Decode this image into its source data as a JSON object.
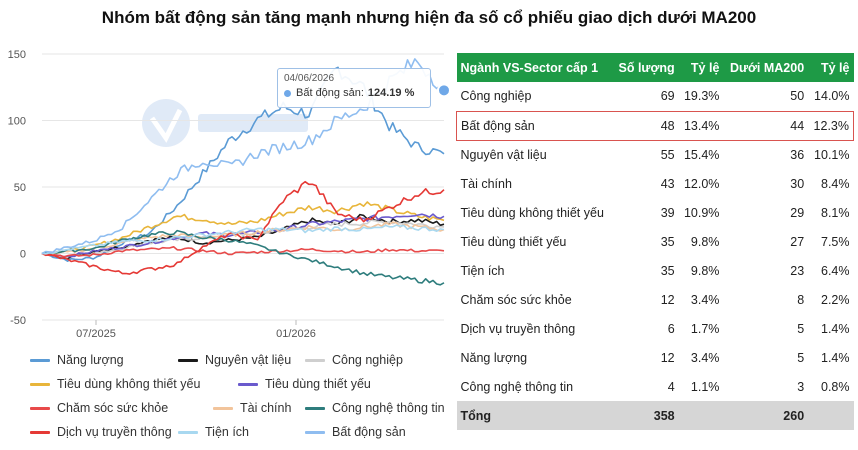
{
  "title": "Nhóm bất động sản tăng mạnh nhưng hiện đa số cổ phiếu giao dịch dưới MA200",
  "tooltip": {
    "date": "04/06/2026",
    "series": "Bất động sản:",
    "value": "124.19 %"
  },
  "chart_data": [
    {
      "type": "line",
      "title": "",
      "xlabel": "",
      "ylabel": "",
      "ylim": [
        -50,
        150
      ],
      "yticks": [
        "150",
        "100",
        "50",
        "0",
        "-50"
      ],
      "xticks": [
        "07/2025",
        "01/2026"
      ],
      "x_range": [
        "2025-05",
        "2026-06"
      ],
      "grid": "horizontal",
      "legend": "bottom",
      "series": [
        {
          "name": "Năng lượng",
          "color": "#5b9bd5",
          "values": [
            0,
            -5,
            -3,
            8,
            15,
            35,
            60,
            85,
            100,
            110,
            105,
            140,
            125,
            95,
            80,
            75
          ]
        },
        {
          "name": "Nguyên vật liệu",
          "color": "#1a1a1a",
          "values": [
            0,
            -3,
            2,
            5,
            10,
            12,
            8,
            10,
            12,
            18,
            25,
            22,
            28,
            24,
            25,
            22
          ]
        },
        {
          "name": "Công nghiệp",
          "color": "#cfcfcf",
          "values": [
            0,
            -2,
            0,
            4,
            8,
            10,
            12,
            14,
            15,
            18,
            20,
            22,
            23,
            24,
            22,
            20
          ]
        },
        {
          "name": "Tiêu dùng không thiết yếu",
          "color": "#e8b53a",
          "values": [
            0,
            2,
            6,
            12,
            20,
            28,
            26,
            22,
            24,
            30,
            35,
            32,
            38,
            33,
            28,
            25
          ]
        },
        {
          "name": "Tiêu dùng thiết yếu",
          "color": "#6a5acd",
          "values": [
            0,
            -2,
            2,
            5,
            8,
            12,
            15,
            14,
            16,
            18,
            22,
            24,
            26,
            28,
            30,
            28
          ]
        },
        {
          "name": "Chăm sóc sức khỏe",
          "color": "#e84a4a",
          "values": [
            0,
            -2,
            -1,
            2,
            3,
            4,
            2,
            0,
            1,
            2,
            3,
            2,
            1,
            3,
            2,
            2
          ]
        },
        {
          "name": "Tài chính",
          "color": "#f2c49b",
          "values": [
            0,
            1,
            4,
            8,
            12,
            14,
            12,
            14,
            16,
            18,
            20,
            18,
            20,
            22,
            20,
            18
          ]
        },
        {
          "name": "Công nghệ thông tin",
          "color": "#2e7d7d",
          "values": [
            0,
            2,
            4,
            10,
            14,
            16,
            12,
            10,
            6,
            0,
            -5,
            -10,
            -15,
            -18,
            -20,
            -22
          ]
        },
        {
          "name": "Dịch vụ truyền thông",
          "color": "#e53935",
          "values": [
            0,
            -5,
            -10,
            -15,
            -12,
            -8,
            5,
            15,
            10,
            40,
            55,
            30,
            25,
            35,
            45,
            48
          ]
        },
        {
          "name": "Tiện ích",
          "color": "#a8d8f0",
          "values": [
            0,
            3,
            6,
            9,
            10,
            12,
            14,
            16,
            18,
            18,
            17,
            19,
            18,
            20,
            19,
            18
          ]
        },
        {
          "name": "Bất động sản",
          "color": "#8fbdf0",
          "values": [
            0,
            5,
            10,
            20,
            40,
            60,
            70,
            65,
            75,
            80,
            85,
            100,
            110,
            130,
            145,
            124.19
          ]
        }
      ]
    },
    {
      "type": "table",
      "columns": [
        "Ngành VS-Sector cấp 1",
        "Số lượng",
        "Tỷ lệ",
        "Dưới MA200",
        "Tỷ lệ"
      ],
      "rows": [
        [
          "Công nghiệp",
          "69",
          "19.3%",
          "50",
          "14.0%"
        ],
        [
          "Bất động sản",
          "48",
          "13.4%",
          "44",
          "12.3%"
        ],
        [
          "Nguyên vật liệu",
          "55",
          "15.4%",
          "36",
          "10.1%"
        ],
        [
          "Tài chính",
          "43",
          "12.0%",
          "30",
          "8.4%"
        ],
        [
          "Tiêu dùng không thiết yếu",
          "39",
          "10.9%",
          "29",
          "8.1%"
        ],
        [
          "Tiêu dùng thiết yếu",
          "35",
          "9.8%",
          "27",
          "7.5%"
        ],
        [
          "Tiện ích",
          "35",
          "9.8%",
          "23",
          "6.4%"
        ],
        [
          "Chăm sóc sức khỏe",
          "12",
          "3.4%",
          "8",
          "2.2%"
        ],
        [
          "Dịch vụ truyền thông",
          "6",
          "1.7%",
          "5",
          "1.4%"
        ],
        [
          "Năng lượng",
          "12",
          "3.4%",
          "5",
          "1.4%"
        ],
        [
          "Công nghệ thông tin",
          "4",
          "1.1%",
          "3",
          "0.8%"
        ]
      ],
      "highlight_row": "Bất động sản",
      "total": [
        "Tổng",
        "358",
        "",
        "260",
        ""
      ],
      "header_color": "#1e9a46"
    }
  ]
}
